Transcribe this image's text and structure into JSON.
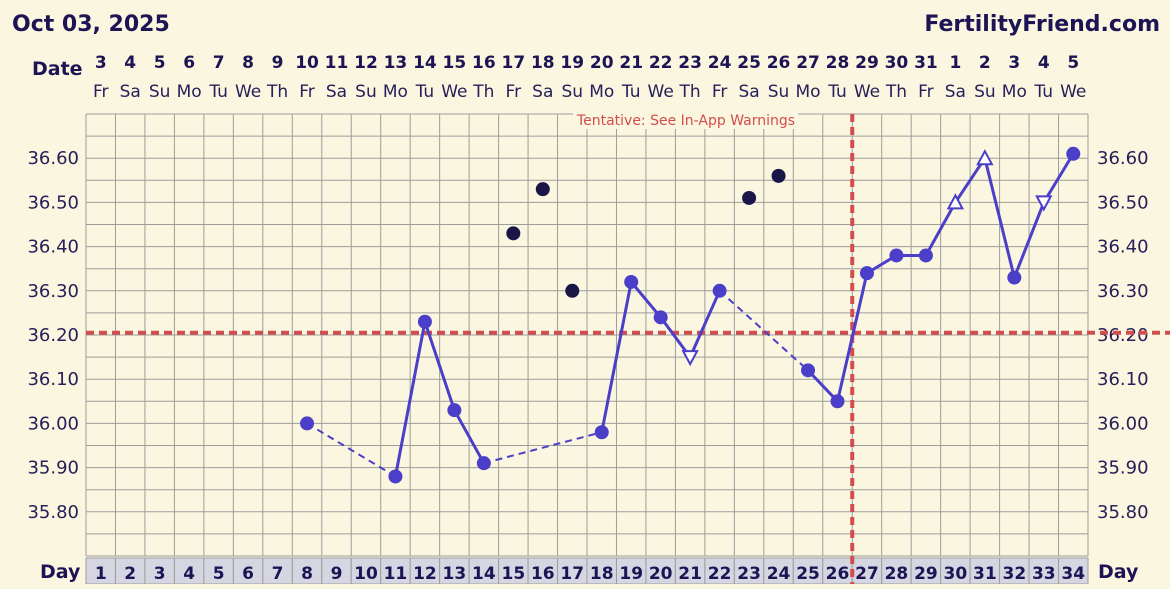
{
  "header": {
    "chart_date": "Oct 03, 2025",
    "brand": "FertilityFriend.com",
    "date_row_label": "Date",
    "day_row_label": "Day",
    "warning": "Tentative: See In-App Warnings"
  },
  "colors": {
    "background": "#fbf6df",
    "grid": "#9d9d9d",
    "line": "#4b3fc9",
    "excluded_point": "#1a1648",
    "coverline": "#d24d4d",
    "day_cell": "#d6d6e2"
  },
  "chart_data": {
    "type": "line",
    "title": "",
    "cycle_days": [
      1,
      2,
      3,
      4,
      5,
      6,
      7,
      8,
      9,
      10,
      11,
      12,
      13,
      14,
      15,
      16,
      17,
      18,
      19,
      20,
      21,
      22,
      23,
      24,
      25,
      26,
      27,
      28,
      29,
      30,
      31,
      32,
      33,
      34
    ],
    "dates": [
      "3",
      "4",
      "5",
      "6",
      "7",
      "8",
      "9",
      "10",
      "11",
      "12",
      "13",
      "14",
      "15",
      "16",
      "17",
      "18",
      "19",
      "20",
      "21",
      "22",
      "23",
      "24",
      "25",
      "26",
      "27",
      "28",
      "29",
      "30",
      "31",
      "1",
      "2",
      "3",
      "4",
      "5"
    ],
    "weekdays": [
      "Fr",
      "Sa",
      "Su",
      "Mo",
      "Tu",
      "We",
      "Th",
      "Fr",
      "Sa",
      "Su",
      "Mo",
      "Tu",
      "We",
      "Th",
      "Fr",
      "Sa",
      "Su",
      "Mo",
      "Tu",
      "We",
      "Th",
      "Fr",
      "Sa",
      "Su",
      "Mo",
      "Tu",
      "We",
      "Th",
      "Fr",
      "Sa",
      "Su",
      "Mo",
      "Tu",
      "We"
    ],
    "ylim": [
      35.7,
      36.7
    ],
    "yticks": [
      "35.80",
      "35.90",
      "36.00",
      "36.10",
      "36.20",
      "36.30",
      "36.40",
      "36.50",
      "36.60"
    ],
    "series": [
      {
        "points": [
          {
            "day": 8,
            "temp": 36.0,
            "marker": "dot"
          },
          {
            "day": 11,
            "temp": 35.88,
            "marker": "dot"
          },
          {
            "day": 12,
            "temp": 36.23,
            "marker": "dot"
          },
          {
            "day": 13,
            "temp": 36.03,
            "marker": "dot"
          },
          {
            "day": 14,
            "temp": 35.91,
            "marker": "dot"
          },
          {
            "day": 18,
            "temp": 35.98,
            "marker": "dot"
          },
          {
            "day": 19,
            "temp": 36.32,
            "marker": "dot"
          },
          {
            "day": 20,
            "temp": 36.24,
            "marker": "dot"
          },
          {
            "day": 21,
            "temp": 36.15,
            "marker": "open-triangle-down"
          },
          {
            "day": 22,
            "temp": 36.3,
            "marker": "dot"
          },
          {
            "day": 25,
            "temp": 36.12,
            "marker": "dot"
          },
          {
            "day": 26,
            "temp": 36.05,
            "marker": "dot"
          },
          {
            "day": 27,
            "temp": 36.34,
            "marker": "dot"
          },
          {
            "day": 28,
            "temp": 36.38,
            "marker": "dot"
          },
          {
            "day": 29,
            "temp": 36.38,
            "marker": "dot"
          },
          {
            "day": 30,
            "temp": 36.5,
            "marker": "open-triangle-up"
          },
          {
            "day": 31,
            "temp": 36.6,
            "marker": "open-triangle-up"
          },
          {
            "day": 32,
            "temp": 36.33,
            "marker": "dot"
          },
          {
            "day": 33,
            "temp": 36.5,
            "marker": "open-triangle-down"
          },
          {
            "day": 34,
            "temp": 36.61,
            "marker": "dot"
          }
        ],
        "dashed_segments": [
          [
            8,
            11
          ],
          [
            14,
            18
          ],
          [
            22,
            25
          ]
        ]
      }
    ],
    "excluded_points": [
      {
        "day": 15,
        "temp": 36.43
      },
      {
        "day": 16,
        "temp": 36.53
      },
      {
        "day": 17,
        "temp": 36.3
      },
      {
        "day": 23,
        "temp": 36.51
      },
      {
        "day": 24,
        "temp": 36.56
      }
    ],
    "coverline": 36.205,
    "ovulation_day": 26,
    "grid": true
  }
}
